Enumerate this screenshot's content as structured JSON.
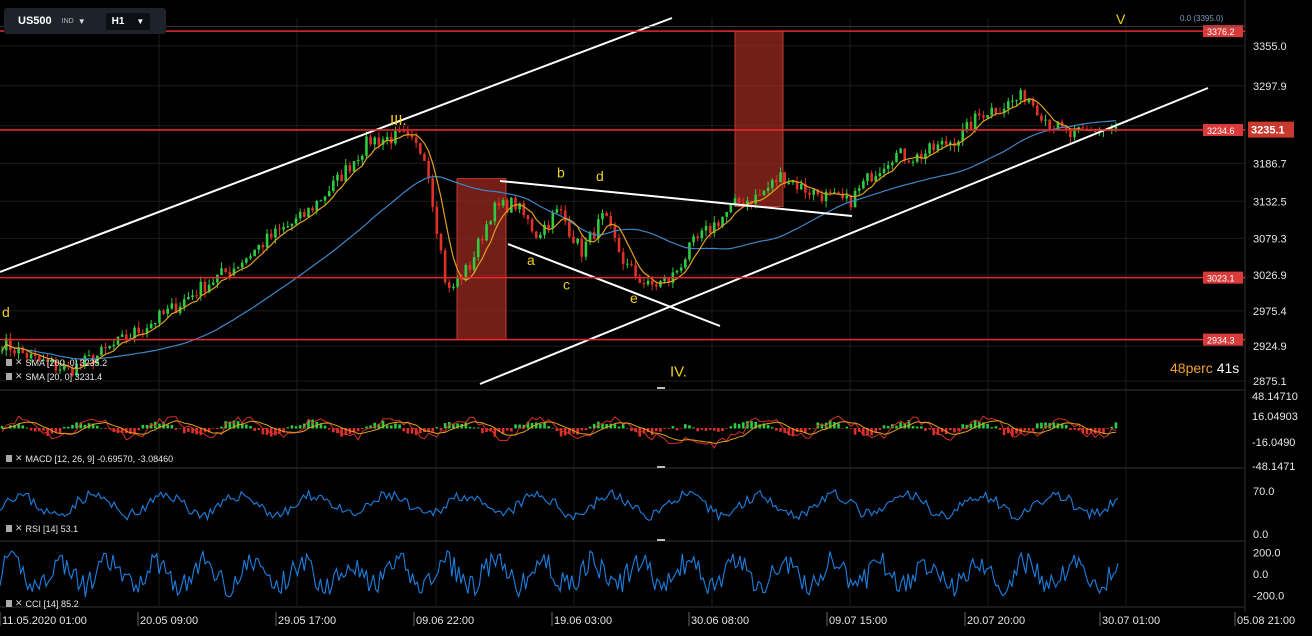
{
  "toolbar": {
    "symbol": "US500",
    "symbol_type": "IND",
    "timeframe": "H1"
  },
  "top_label": "0.0 (3395.0)",
  "countdown": {
    "percent": "48perc",
    "seconds": "41s"
  },
  "indicators": {
    "sma200_label": "SMA [200, 0] 3235.2",
    "sma20_label": "SMA [20, 0] 3231.4",
    "macd_label": "MACD [12, 26, 9] -0.69570, -3.08460",
    "rsi_label": "RSI [14] 53.1",
    "cci_label": "CCI [14] 85.2"
  },
  "colors": {
    "background": "#000000",
    "grid": "#1c1c1c",
    "up_candle": "#2ecc40",
    "down_candle": "#e0302a",
    "sma20": "#e0a020",
    "sma200": "#3d86c6",
    "level_line": "#e8282e",
    "level_tag": "#d93a3a",
    "trend_line": "#ffffff",
    "wave_label": "#f0d020",
    "rsi_line": "#1c7fe0",
    "cci_line": "#1c7fe0",
    "macd_fast": "#d3312c",
    "macd_slow": "#e0a020",
    "price_tag": "#c8392e",
    "zone_fill": "#9b2820"
  },
  "chart_data": [
    {
      "type": "candlestick",
      "panel": "price",
      "y_axis_ticks": [
        "3355.0",
        "3297.9",
        "3240.8",
        "3186.7",
        "3132.5",
        "3079.3",
        "3026.9",
        "2975.4",
        "2924.9",
        "2875.1"
      ],
      "x_axis_ticks": [
        "11.05.2020 01:00",
        "20.05 09:00",
        "29.05 17:00",
        "09.06 22:00",
        "19.06 03:00",
        "30.06 08:00",
        "09.07 15:00",
        "20.07 20:00",
        "30.07 01:00",
        "05.08 21:00"
      ],
      "current_price": "3235.1",
      "levels": [
        {
          "price": 3376.2,
          "label": "3376.2"
        },
        {
          "price": 3234.6,
          "label": "3234.6"
        },
        {
          "price": 3023.1,
          "label": "3023.1"
        },
        {
          "price": 2934.3,
          "label": "2934.3"
        }
      ],
      "close_path": {
        "x": [
          0.0,
          0.03,
          0.06,
          0.09,
          0.12,
          0.15,
          0.18,
          0.21,
          0.24,
          0.27,
          0.3,
          0.33,
          0.36,
          0.38,
          0.4,
          0.42,
          0.44,
          0.46,
          0.48,
          0.5,
          0.52,
          0.54,
          0.56,
          0.58,
          0.6,
          0.62,
          0.64,
          0.66,
          0.68,
          0.7,
          0.72,
          0.74,
          0.76,
          0.78,
          0.8,
          0.82,
          0.84,
          0.86,
          0.88,
          0.9,
          0.92,
          0.94,
          0.96,
          0.98,
          1.0
        ],
        "y": [
          2930,
          2905,
          2890,
          2915,
          2945,
          2975,
          3010,
          3040,
          3080,
          3110,
          3160,
          3220,
          3225,
          3200,
          3000,
          3040,
          3120,
          3130,
          3085,
          3120,
          3060,
          3110,
          3040,
          3010,
          3020,
          3070,
          3100,
          3130,
          3140,
          3170,
          3150,
          3140,
          3130,
          3170,
          3200,
          3195,
          3210,
          3225,
          3260,
          3270,
          3285,
          3245,
          3225,
          3235,
          3235
        ]
      },
      "wave_labels": [
        {
          "text": "III.",
          "price": 3250
        },
        {
          "text": "a",
          "price": 3050
        },
        {
          "text": "b",
          "price": 3175
        },
        {
          "text": "c",
          "price": 3015
        },
        {
          "text": "d",
          "price": 3170
        },
        {
          "text": "e",
          "price": 2995
        },
        {
          "text": "IV.",
          "price": 2890
        },
        {
          "text": "V",
          "price": 3395
        },
        {
          "text": "d",
          "price": 2975
        }
      ]
    },
    {
      "type": "histogram+line",
      "panel": "macd",
      "y_axis_ticks": [
        "48.14710",
        "16.04903",
        "-16.0490",
        "-48.1471"
      ],
      "ylim": [
        -48.1471,
        48.1471
      ]
    },
    {
      "type": "line",
      "panel": "rsi",
      "y_axis_ticks": [
        "70.0",
        "0.0"
      ],
      "ylim": [
        0,
        100
      ]
    },
    {
      "type": "line",
      "panel": "cci",
      "y_axis_ticks": [
        "200.0",
        "0.0",
        "-200.0"
      ],
      "ylim": [
        -300,
        300
      ]
    }
  ]
}
